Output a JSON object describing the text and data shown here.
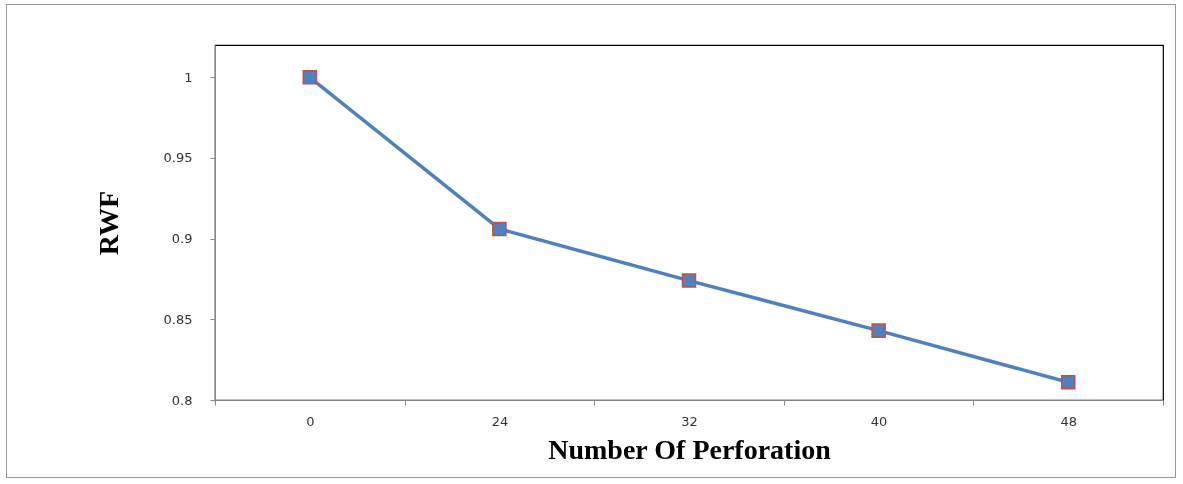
{
  "chart_data": {
    "type": "line",
    "xlabel": "Number Of Perforation",
    "ylabel": "RWF",
    "categories": [
      "0",
      "24",
      "32",
      "40",
      "48"
    ],
    "series": [
      {
        "color": "#4f81bd",
        "values": [
          1,
          0.906,
          0.874,
          0.843,
          0.811
        ]
      }
    ],
    "ylim": [
      0.8,
      1.02
    ],
    "yticks": [
      0.8,
      0.85,
      0.9,
      0.95,
      1
    ],
    "grid": false,
    "legend": false,
    "marker": "square",
    "line_style": "solid"
  }
}
